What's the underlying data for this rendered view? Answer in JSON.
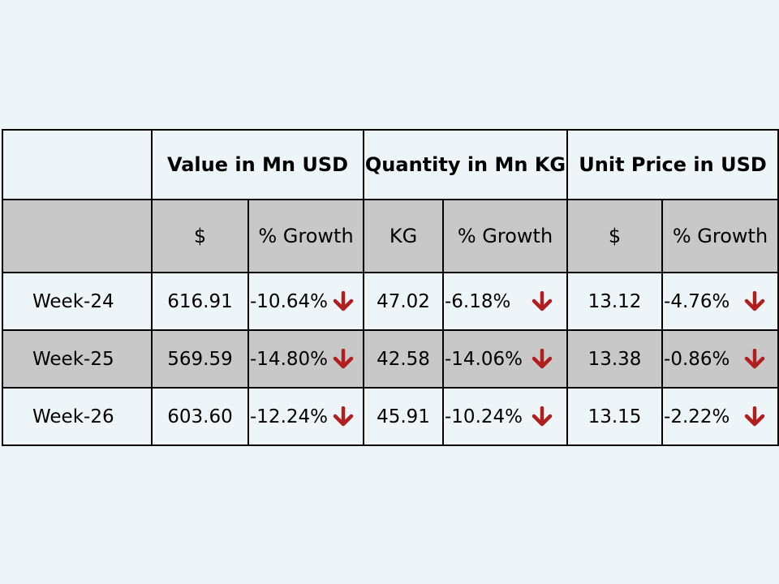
{
  "table": {
    "headers": {
      "blank": "",
      "value": "Value in Mn USD",
      "quantity": "Quantity in Mn KG",
      "unit_price": "Unit Price in USD"
    },
    "subheaders": {
      "blank": "",
      "value_unit": "$",
      "value_growth": "% Growth",
      "quantity_unit": "KG",
      "quantity_growth": "% Growth",
      "price_unit": "$",
      "price_growth": "% Growth"
    },
    "rows": [
      {
        "week": "Week-24",
        "value": "616.91",
        "value_growth": "-10.64%",
        "quantity": "47.02",
        "quantity_growth": "-6.18%",
        "price": "13.12",
        "price_growth": "-4.76%"
      },
      {
        "week": "Week-25",
        "value": "569.59",
        "value_growth": "-14.80%",
        "quantity": "42.58",
        "quantity_growth": "-14.06%",
        "price": "13.38",
        "price_growth": "-0.86%"
      },
      {
        "week": "Week-26",
        "value": "603.60",
        "value_growth": "-12.24%",
        "quantity": "45.91",
        "quantity_growth": "-10.24%",
        "price": "13.15",
        "price_growth": "-2.22%"
      }
    ]
  },
  "icons": {
    "down_arrow": "down-arrow-icon"
  },
  "colors": {
    "background": "#eef5f8",
    "shaded_row": "#c8c8c8",
    "arrow": "#b01e1e"
  }
}
